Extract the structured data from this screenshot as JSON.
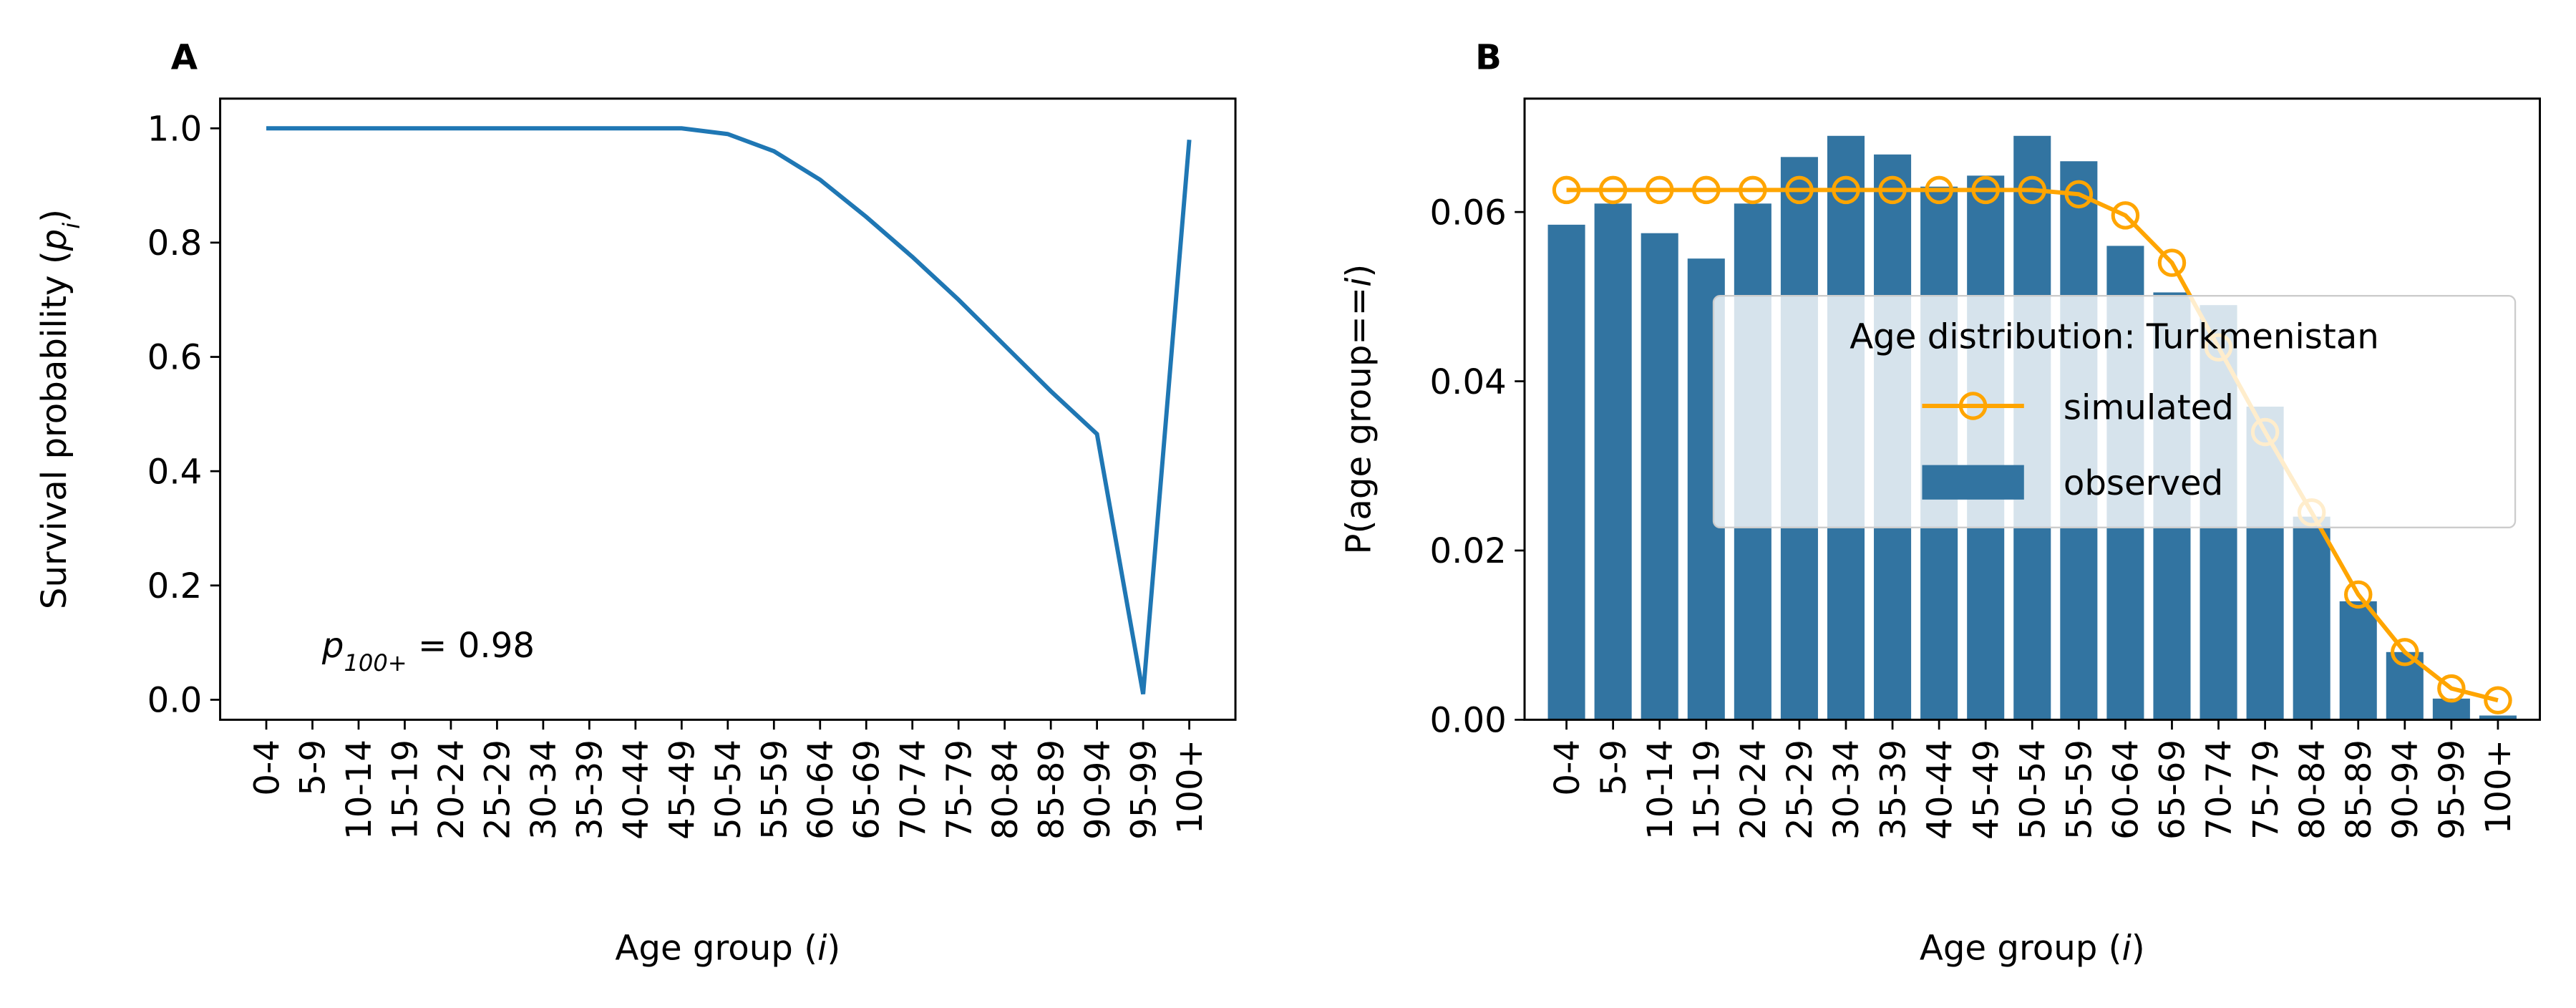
{
  "chart_data": [
    {
      "type": "line",
      "panel": "A",
      "xlabel": {
        "text": "Age group (",
        "italic": "i",
        "end": ")"
      },
      "ylabel": {
        "text": "Survival probability (",
        "italic": "p",
        "sub": "i",
        "end": ")"
      },
      "annotation": {
        "italic": "p",
        "sub": "100+",
        "end": " = 0.98"
      },
      "categories": [
        "0-4",
        "5-9",
        "10-14",
        "15-19",
        "20-24",
        "25-29",
        "30-34",
        "35-39",
        "40-44",
        "45-49",
        "50-54",
        "55-59",
        "60-64",
        "65-69",
        "70-74",
        "75-79",
        "80-84",
        "85-89",
        "90-94",
        "95-99",
        "100+"
      ],
      "values": [
        1.0,
        1.0,
        1.0,
        1.0,
        1.0,
        1.0,
        1.0,
        1.0,
        1.0,
        1.0,
        0.99,
        0.96,
        0.91,
        0.845,
        0.775,
        0.7,
        0.62,
        0.54,
        0.465,
        0.01,
        0.98
      ],
      "color": "#1f77b4",
      "ylim": [
        -0.035,
        1.052
      ],
      "yticks": [
        {
          "value": 0,
          "label": "0.0"
        },
        0.2,
        0.4,
        0.6,
        0.8,
        {
          "value": 1,
          "label": "1.0"
        }
      ]
    },
    {
      "type": "bar",
      "panel": "B",
      "xlabel": {
        "text": "Age group (",
        "italic": "i",
        "end": ")"
      },
      "ylabel": {
        "text": "P(age group==",
        "italic": "i",
        "end": ")"
      },
      "categories": [
        "0-4",
        "5-9",
        "10-14",
        "15-19",
        "20-24",
        "25-29",
        "30-34",
        "35-39",
        "40-44",
        "45-49",
        "50-54",
        "55-59",
        "60-64",
        "65-69",
        "70-74",
        "75-79",
        "80-84",
        "85-89",
        "90-94",
        "95-99",
        "100+"
      ],
      "series": [
        {
          "name": "simulated",
          "type": "line",
          "color": "#ffa500",
          "values": [
            0.0626,
            0.0626,
            0.0626,
            0.0626,
            0.0626,
            0.0626,
            0.0626,
            0.0626,
            0.0626,
            0.0626,
            0.0626,
            0.0621,
            0.0596,
            0.054,
            0.044,
            0.034,
            0.0245,
            0.0148,
            0.008,
            0.0037,
            0.0023
          ]
        },
        {
          "name": "observed",
          "type": "bar",
          "color": "#3274a1",
          "values": [
            0.0585,
            0.061,
            0.0575,
            0.0545,
            0.061,
            0.0665,
            0.069,
            0.0668,
            0.063,
            0.0643,
            0.069,
            0.066,
            0.056,
            0.0505,
            0.049,
            0.037,
            0.024,
            0.014,
            0.008,
            0.0025,
            0.0005
          ]
        }
      ],
      "ylim": [
        0,
        0.0734
      ],
      "yticks": [
        {
          "value": 0,
          "label": "0.00"
        },
        {
          "value": 0.02,
          "label": "0.02"
        },
        {
          "value": 0.04,
          "label": "0.04"
        },
        {
          "value": 0.06,
          "label": "0.06"
        }
      ],
      "legend": {
        "title": "Age distribution: Turkmenistan",
        "position": "center right"
      }
    }
  ]
}
